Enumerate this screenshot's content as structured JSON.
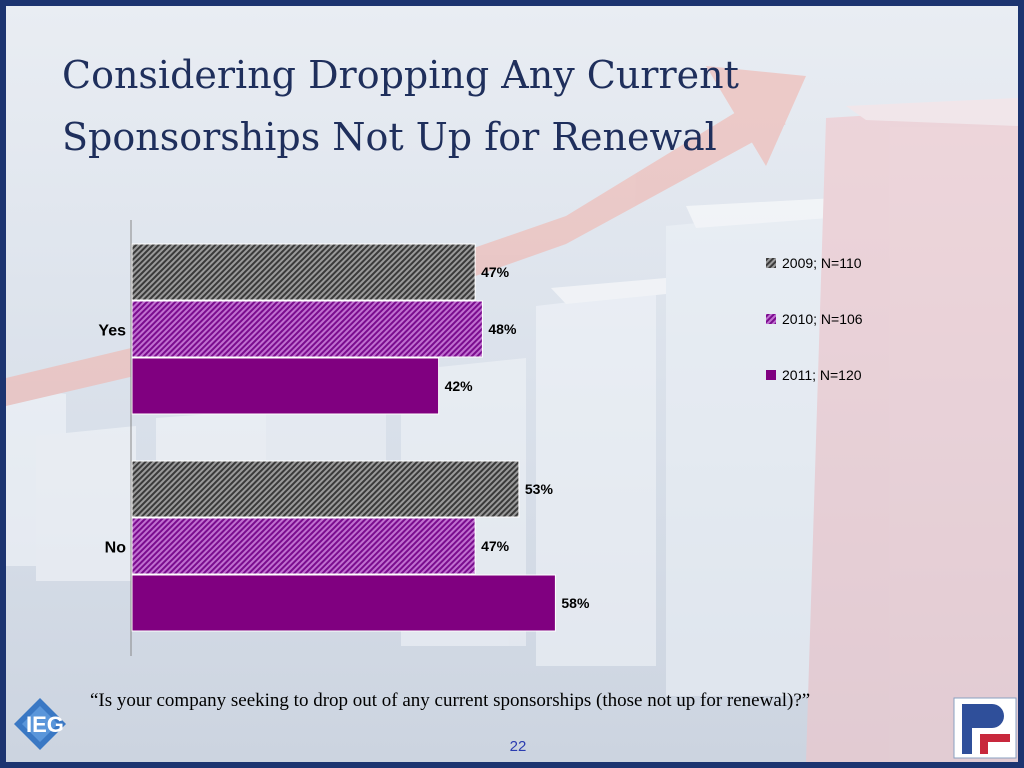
{
  "title": "Considering Dropping Any Current Sponsorships Not Up for Renewal",
  "question": "“Is your company seeking to drop out of any current sponsorships (those not up for renewal)?”",
  "page_number": "22",
  "logos": {
    "left": "IEG",
    "right": "PF"
  },
  "colors": {
    "series_2009": "#555555",
    "series_2010": "#8a1a9e",
    "series_2011": "#800080",
    "title": "#1f2f5c",
    "frame": "#1c3470"
  },
  "chart_data": {
    "type": "bar",
    "orientation": "horizontal",
    "categories": [
      "Yes",
      "No"
    ],
    "series": [
      {
        "name": "2009; N=110",
        "values": [
          47,
          53
        ],
        "labels": [
          "47%",
          "53%"
        ],
        "pattern": "gray-hatch"
      },
      {
        "name": "2010; N=106",
        "values": [
          48,
          47
        ],
        "labels": [
          "48%",
          "47%"
        ],
        "pattern": "purple-hatch"
      },
      {
        "name": "2011; N=120",
        "values": [
          42,
          58
        ],
        "labels": [
          "42%",
          "58%"
        ],
        "pattern": "solid-purple"
      }
    ],
    "xlim": [
      0,
      100
    ],
    "grid": false,
    "legend": "right",
    "xlabel": "",
    "ylabel": ""
  }
}
